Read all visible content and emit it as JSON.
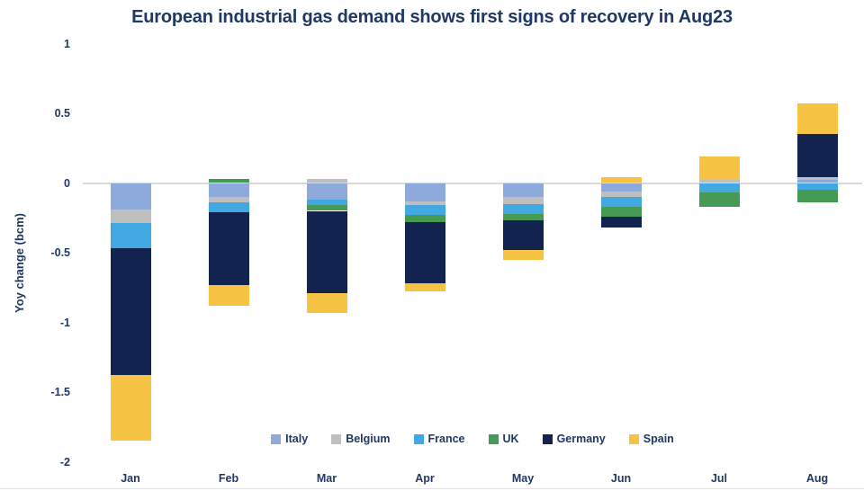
{
  "title": "European industrial gas demand shows first signs of recovery in Aug23",
  "colors": {
    "title_text": "#1F3864",
    "axis_text": "#1F3864",
    "gridline": "#D9D9D9"
  },
  "chart_data": {
    "type": "bar",
    "subtype": "stacked",
    "title": "European industrial gas demand shows first signs of recovery in Aug23",
    "xlabel": "",
    "ylabel": "Yoy change (bcm)",
    "ylim": [
      -2,
      1
    ],
    "yticks": [
      1,
      0.5,
      0,
      -0.5,
      -1,
      -1.5,
      -2
    ],
    "grid": "zero-line-only",
    "legend_position": "bottom",
    "categories": [
      "Jan",
      "Feb",
      "Mar",
      "Apr",
      "May",
      "Jun",
      "Jul",
      "Aug"
    ],
    "series": [
      {
        "name": "Italy",
        "color": "#8EA9DB",
        "values": [
          -0.19,
          -0.1,
          -0.12,
          -0.13,
          -0.1,
          -0.06,
          0.0,
          0.02
        ]
      },
      {
        "name": "Belgium",
        "color": "#BFBFBF",
        "values": [
          -0.1,
          -0.04,
          0.03,
          -0.03,
          -0.05,
          -0.04,
          0.02,
          0.02
        ]
      },
      {
        "name": "France",
        "color": "#41A8E1",
        "values": [
          -0.18,
          -0.07,
          -0.04,
          -0.07,
          -0.07,
          -0.07,
          -0.07,
          -0.05
        ]
      },
      {
        "name": "UK",
        "color": "#459B53",
        "values": [
          0.0,
          0.03,
          -0.04,
          -0.05,
          -0.05,
          -0.07,
          -0.1,
          -0.09
        ]
      },
      {
        "name": "Germany",
        "color": "#13234F",
        "values": [
          -0.91,
          -0.52,
          -0.59,
          -0.44,
          -0.21,
          -0.08,
          0.0,
          0.31
        ]
      },
      {
        "name": "Spain",
        "color": "#F6C344",
        "values": [
          -0.47,
          -0.15,
          -0.14,
          -0.06,
          -0.07,
          0.04,
          0.17,
          0.22
        ]
      }
    ]
  }
}
